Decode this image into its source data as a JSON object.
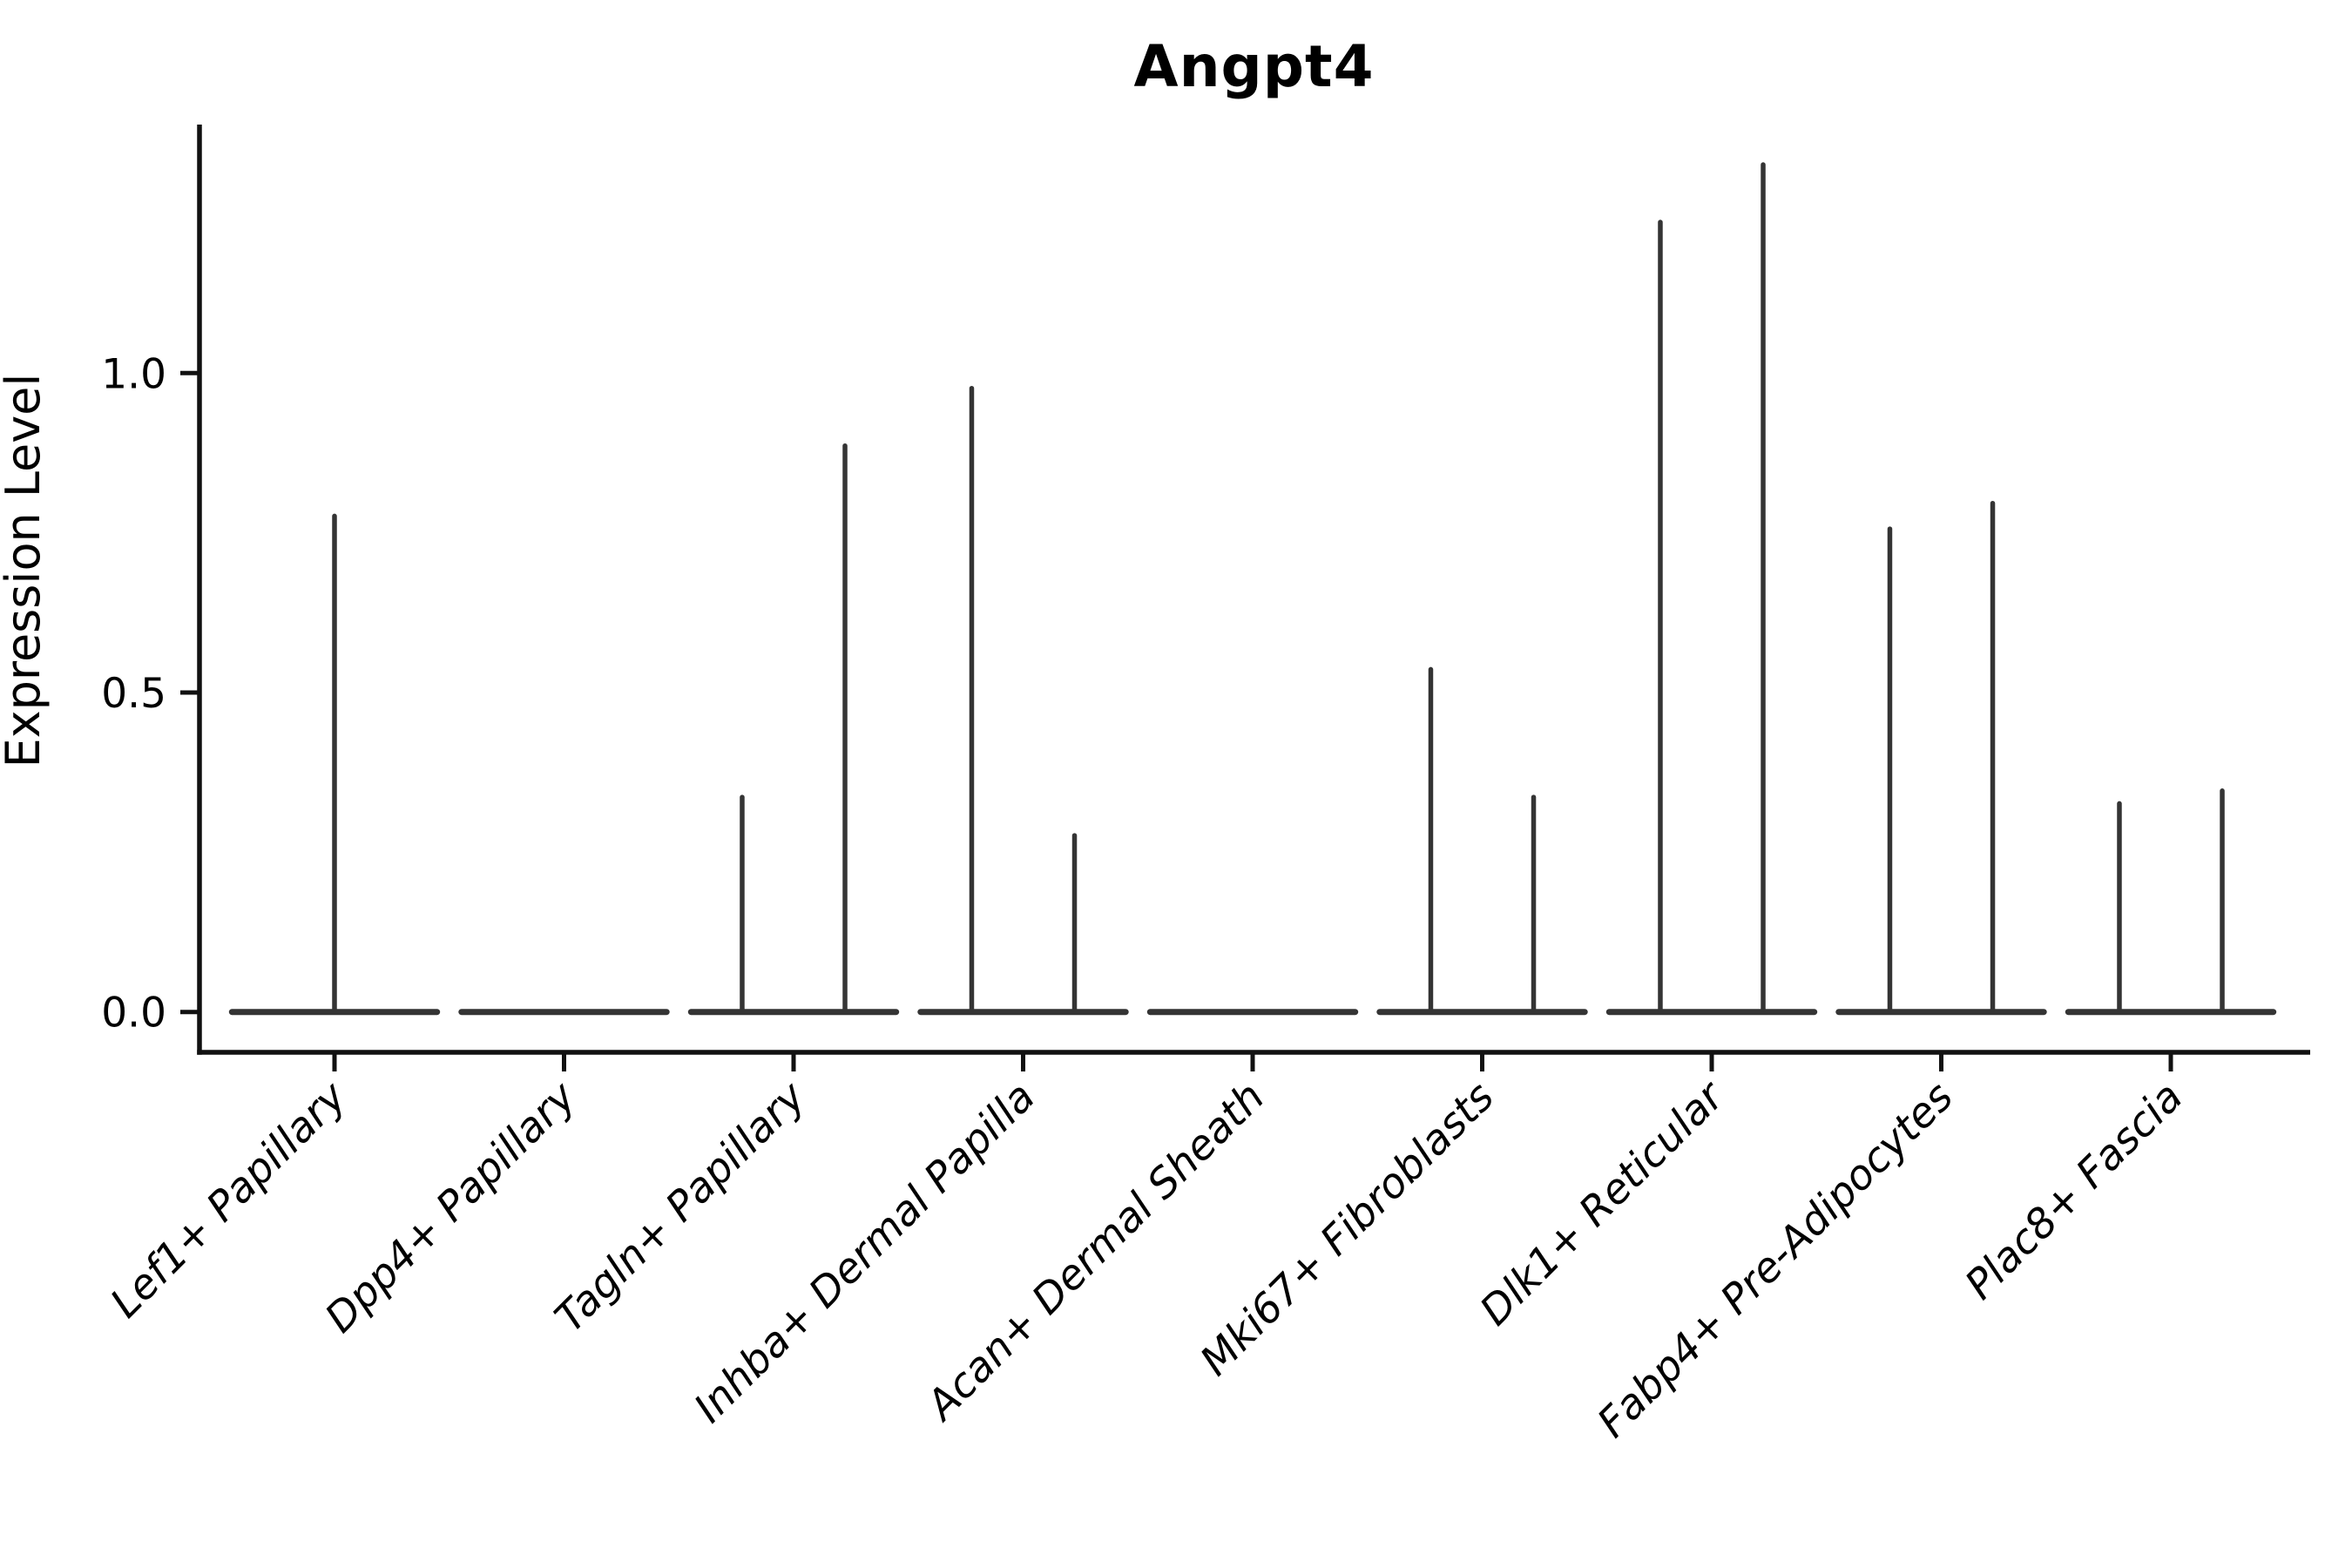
{
  "chart_data": {
    "type": "violin",
    "title": "Angpt4",
    "ylabel": "Expression Level",
    "xlabel": "",
    "ytick_labels": [
      "0.0",
      "0.5",
      "1.0"
    ],
    "ytick_values": [
      0.0,
      0.5,
      1.0
    ],
    "ylim": [
      -0.063,
      1.389
    ],
    "grid": false,
    "legend": false,
    "violin_color": "#343434",
    "axis_color": "#111111",
    "text_color": "#000000",
    "baseline_halfwidth_frac": 0.46,
    "categories": [
      "Lef1+ Papillary",
      "Dpp4+ Papillary",
      "Tagln+ Papillary",
      "Inhba+ Dermal Papilla",
      "Acan+ Dermal Sheath",
      "Mki67+ Fibroblasts",
      "Dlk1+ Reticular",
      "Fabp4+ Pre-Adipocytes",
      "Plac8+ Fascia"
    ],
    "violins": [
      {
        "category": "Lef1+ Papillary",
        "spikes": [
          {
            "offset": 0.0,
            "max": 0.78
          }
        ]
      },
      {
        "category": "Dpp4+ Papillary",
        "spikes": []
      },
      {
        "category": "Tagln+ Papillary",
        "spikes": [
          {
            "offset": -0.224,
            "max": 0.34
          },
          {
            "offset": 0.224,
            "max": 0.89
          }
        ]
      },
      {
        "category": "Inhba+ Dermal Papilla",
        "spikes": [
          {
            "offset": -0.224,
            "max": 0.98
          },
          {
            "offset": 0.224,
            "max": 0.28
          }
        ]
      },
      {
        "category": "Acan+ Dermal Sheath",
        "spikes": []
      },
      {
        "category": "Mki67+ Fibroblasts",
        "spikes": [
          {
            "offset": -0.224,
            "max": 0.54
          },
          {
            "offset": 0.224,
            "max": 0.34
          }
        ]
      },
      {
        "category": "Dlk1+ Reticular",
        "spikes": [
          {
            "offset": -0.224,
            "max": 1.24
          },
          {
            "offset": 0.224,
            "max": 1.33
          }
        ]
      },
      {
        "category": "Fabp4+ Pre-Adipocytes",
        "spikes": [
          {
            "offset": -0.224,
            "max": 0.76
          },
          {
            "offset": 0.224,
            "max": 0.8
          }
        ]
      },
      {
        "category": "Plac8+ Fascia",
        "spikes": [
          {
            "offset": -0.224,
            "max": 0.33
          },
          {
            "offset": 0.224,
            "max": 0.35
          }
        ]
      }
    ]
  }
}
